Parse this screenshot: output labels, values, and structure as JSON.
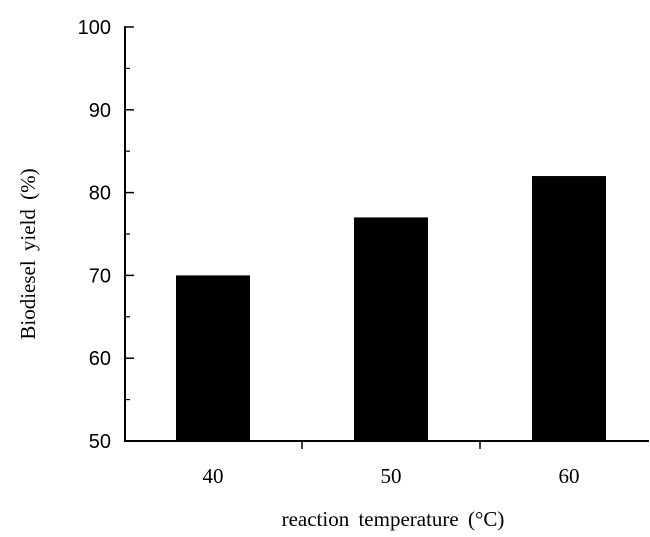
{
  "chart_data": {
    "type": "bar",
    "categories": [
      "40",
      "50",
      "60"
    ],
    "values": [
      70,
      77,
      82
    ],
    "title": "",
    "xlabel": "reaction temperature (°C)",
    "ylabel": "Biodiesel yield (%)",
    "ylim": [
      50,
      100
    ],
    "yticks": [
      50,
      60,
      70,
      80,
      90,
      100
    ],
    "grid": false,
    "bar_color": "#000000"
  }
}
